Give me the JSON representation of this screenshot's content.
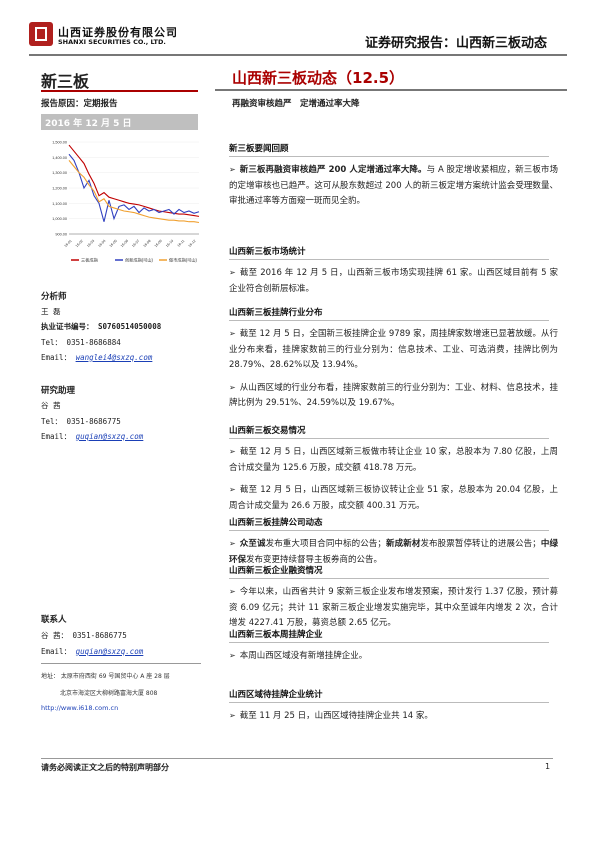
{
  "header": {
    "company_cn": "山西证券股份有限公司",
    "company_en": "SHANXI SECURITIES CO., LTD.",
    "report_title": "证券研究报告：山西新三板动态"
  },
  "left": {
    "section": "新三板",
    "report_reason": "报告原因：定期报告",
    "date": "2016 年 12 月 5 日",
    "analyst_label": "分析师",
    "analyst_name": "王 磊",
    "cert": "执业证书编号： S0760514050008",
    "analyst_tel": "Tel： 0351-8686884",
    "analyst_email_label": "Email：",
    "analyst_email": "wanglei4@sxzq.com",
    "assistant_label": "研究助理",
    "assistant_name": "谷 茜",
    "assistant_tel": "Tel： 0351-8686775",
    "assistant_email_label": "Email：",
    "assistant_email": "guqian@sxzq.com",
    "contact_label": "联系人",
    "contact_tel": "谷 茜： 0351-8686775",
    "contact_email_label": "Email：",
    "contact_email": "guqian@sxzq.com",
    "address_1": "地址： 太原市府西街 69 号国贸中心 A 座 28 层",
    "address_2": "北京市海淀区大柳树路富海大厦 808",
    "url": "http://www.i618.com.cn"
  },
  "chart_data": {
    "type": "line",
    "yticks": [
      "1,500.00",
      "1,400.00",
      "1,300.00",
      "1,200.00",
      "1,100.00",
      "1,000.00",
      "900.00"
    ],
    "ylim": [
      900,
      1500
    ],
    "xticks": [
      "16-01",
      "16-02",
      "16-03",
      "16-04",
      "16-05",
      "16-06",
      "16-07",
      "16-08",
      "16-09",
      "16-10",
      "16-11",
      "16-12"
    ],
    "series": [
      {
        "name": "三板成指",
        "color": "#c00000",
        "values": [
          1480,
          1440,
          1400,
          1360,
          1290,
          1230,
          1150,
          1170,
          1140,
          1130,
          1120,
          1110,
          1100,
          1095,
          1090,
          1080,
          1070,
          1060,
          1050,
          1045,
          1040,
          1035,
          1030,
          1030,
          1025,
          1020,
          1015
        ]
      },
      {
        "name": "创新成指(可山)",
        "color": "#3040c0",
        "values": [
          1420,
          1380,
          1300,
          1200,
          1250,
          1150,
          1100,
          980,
          1120,
          1000,
          1080,
          1090,
          1060,
          1080,
          1040,
          1070,
          1050,
          1060,
          1040,
          1050,
          1060,
          1030,
          1060,
          1040,
          1050,
          1035,
          1045
        ]
      },
      {
        "name": "做市成指(可山)",
        "color": "#f0a030",
        "values": [
          1380,
          1340,
          1300,
          1270,
          1220,
          1180,
          1110,
          1130,
          1080,
          1070,
          1060,
          1050,
          1045,
          1040,
          1030,
          1020,
          1010,
          1005,
          1000,
          995,
          990,
          990,
          985,
          985,
          980,
          980,
          975
        ]
      }
    ]
  },
  "main": {
    "title": "山西新三板动态（12.5）",
    "subtitle": "再融资审核趋严　定增通过率大降",
    "sections": [
      {
        "head": "新三板要闻回顾",
        "paras": [
          {
            "bold": "新三板再融资审核趋严 200 人定增通过率大降。",
            "text": "与 A 股定增收紧相应，新三板市场的定增审核也已趋严。这可从股东数超过 200 人的新三板定增方案统计监会受理数量、审批通过率等方面窥一斑而见全豹。"
          }
        ]
      },
      {
        "head": "山西新三板市场统计",
        "paras": [
          {
            "bold": "",
            "text": "截至 2016 年 12 月 5 日，山西新三板市场实现挂牌 61 家。山西区域目前有 5 家企业符合创新层标准。"
          }
        ]
      },
      {
        "head": "山西新三板挂牌行业分布",
        "paras": [
          {
            "bold": "",
            "text": "截至 12 月 5 日，全国新三板挂牌企业 9789 家，周挂牌家数增速已显著放缓。从行业分布来看，挂牌家数前三的行业分别为：信息技术、工业、可选消费，挂牌比例为 28.79%、28.62%以及 13.94%。"
          },
          {
            "bold": "",
            "text": "从山西区域的行业分布看，挂牌家数前三的行业分别为：工业、材料、信息技术，挂牌比例为 29.51%、24.59%以及 19.67%。"
          }
        ]
      },
      {
        "head": "山西新三板交易情况",
        "paras": [
          {
            "bold": "",
            "text": "截至 12 月 5 日，山西区域新三板做市转让企业 10 家，总股本为 7.80 亿股，上周合计成交量为 125.6 万股，成交额 418.78 万元。"
          },
          {
            "bold": "",
            "text": "截至 12 月 5 日，山西区域新三板协议转让企业 51 家，总股本为 20.04 亿股，上周合计成交量为 26.6 万股，成交额 400.31 万元。"
          }
        ]
      },
      {
        "head": "山西新三板挂牌公司动态",
        "paras": [
          {
            "bold": "",
            "text": ""
          }
        ]
      },
      {
        "head": "山西新三板企业融资情况",
        "paras": [
          {
            "bold": "",
            "text": "今年以来，山西省共计 9 家新三板企业发布增发预案，预计发行 1.37 亿股，预计募资 6.09 亿元；共计 11 家新三板企业增发实施完毕，其中众至诚年内增发 2 次，合计增发 4227.41 万股，募资总额 2.65 亿元。"
          }
        ]
      },
      {
        "head": "山西新三板本周挂牌企业",
        "paras": [
          {
            "bold": "",
            "text": "本周山西区域没有新增挂牌企业。"
          }
        ]
      },
      {
        "head": "山西区域待挂牌企业统计",
        "paras": [
          {
            "bold": "",
            "text": "截至 11 月 25 日，山西区域待挂牌企业共 14 家。"
          }
        ]
      }
    ],
    "dynamics": [
      {
        "b": "众至诚",
        "t": "发布重大项目合同中标的公告；"
      },
      {
        "b": "新成新材",
        "t": "发布股票暂停转让的进展公告；"
      },
      {
        "b": "中绿环保",
        "t": "发布变更持续督导主板券商的公告。"
      }
    ]
  },
  "footer": {
    "disclaimer": "请务必阅读正文之后的特别声明部分",
    "page": "1"
  }
}
